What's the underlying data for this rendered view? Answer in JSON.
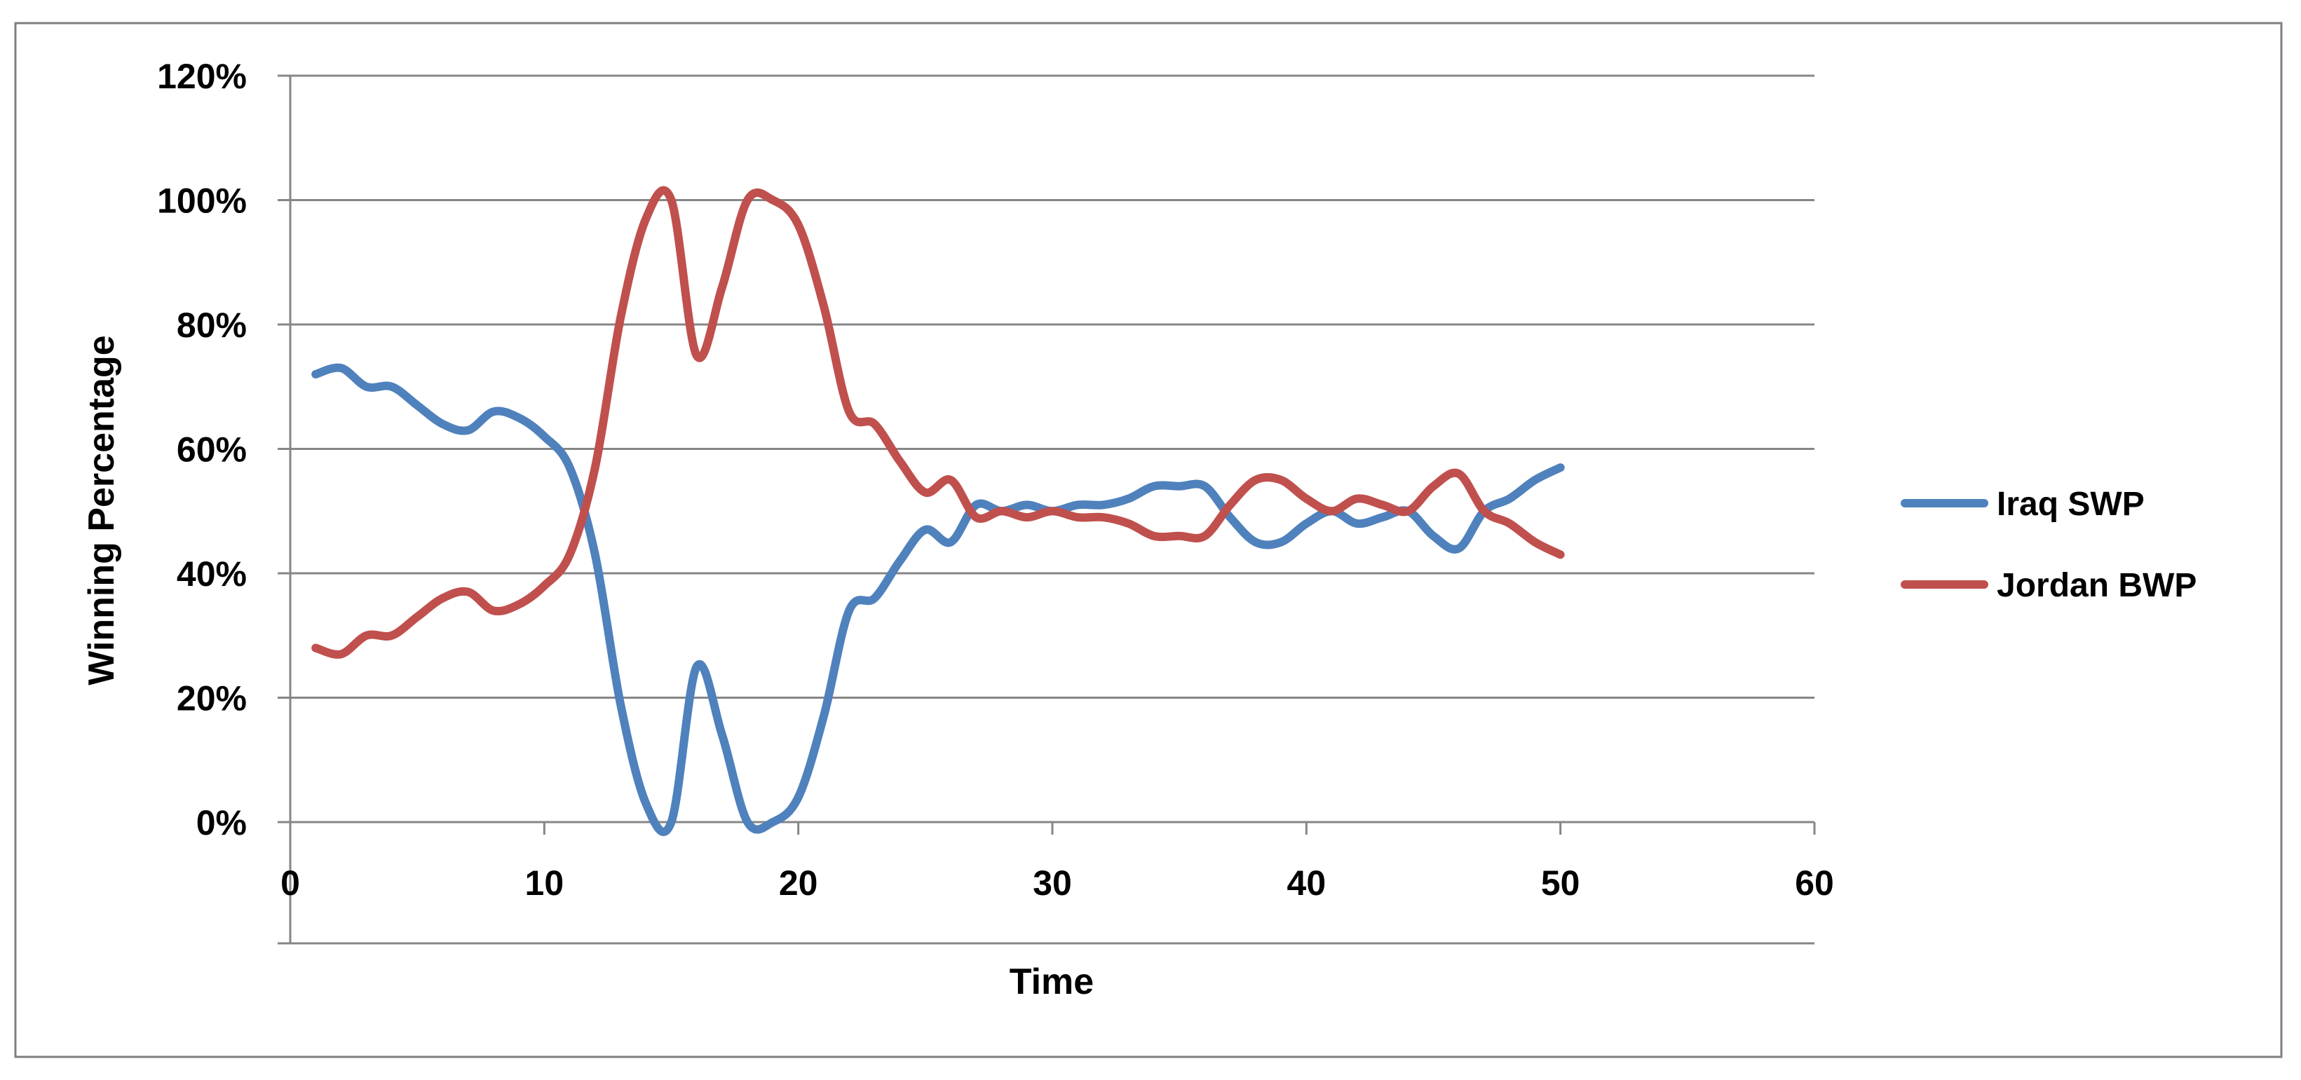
{
  "chart_data": {
    "type": "line",
    "title": "",
    "xlabel": "Time",
    "ylabel": "Winning Percentage",
    "xlim": [
      0,
      60
    ],
    "ylim": [
      0,
      1.2
    ],
    "x_ticks": [
      0,
      10,
      20,
      30,
      40,
      50,
      60
    ],
    "y_ticks": [
      0,
      0.2,
      0.4,
      0.6,
      0.8,
      1.0,
      1.2
    ],
    "x_tick_labels": [
      "0",
      "10",
      "20",
      "30",
      "40",
      "50",
      "60"
    ],
    "y_tick_labels": [
      "0%",
      "20%",
      "40%",
      "60%",
      "80%",
      "100%",
      "120%"
    ],
    "grid": "horizontal",
    "legend_position": "right",
    "x": [
      1,
      2,
      3,
      4,
      5,
      6,
      7,
      8,
      9,
      10,
      11,
      12,
      13,
      14,
      15,
      16,
      17,
      18,
      19,
      20,
      21,
      22,
      23,
      24,
      25,
      26,
      27,
      28,
      29,
      30,
      31,
      32,
      33,
      34,
      35,
      36,
      37,
      38,
      39,
      40,
      41,
      42,
      43,
      44,
      45,
      46,
      47,
      48,
      49,
      50
    ],
    "series": [
      {
        "name": "Iraq SWP",
        "color": "#4F81BD",
        "values": [
          0.72,
          0.73,
          0.7,
          0.7,
          0.67,
          0.64,
          0.63,
          0.66,
          0.65,
          0.62,
          0.57,
          0.43,
          0.19,
          0.03,
          0.0,
          0.25,
          0.14,
          0.0,
          0.0,
          0.04,
          0.17,
          0.34,
          0.36,
          0.42,
          0.47,
          0.45,
          0.51,
          0.5,
          0.51,
          0.5,
          0.51,
          0.51,
          0.52,
          0.54,
          0.54,
          0.54,
          0.49,
          0.45,
          0.45,
          0.48,
          0.5,
          0.48,
          0.49,
          0.5,
          0.46,
          0.44,
          0.5,
          0.52,
          0.55,
          0.57
        ]
      },
      {
        "name": "Jordan BWP",
        "color": "#C0504D",
        "values": [
          0.28,
          0.27,
          0.3,
          0.3,
          0.33,
          0.36,
          0.37,
          0.34,
          0.35,
          0.38,
          0.43,
          0.57,
          0.81,
          0.97,
          1.0,
          0.75,
          0.86,
          1.0,
          1.0,
          0.96,
          0.83,
          0.66,
          0.64,
          0.58,
          0.53,
          0.55,
          0.49,
          0.5,
          0.49,
          0.5,
          0.49,
          0.49,
          0.48,
          0.46,
          0.46,
          0.46,
          0.51,
          0.55,
          0.55,
          0.52,
          0.5,
          0.52,
          0.51,
          0.5,
          0.54,
          0.56,
          0.5,
          0.48,
          0.45,
          0.43
        ]
      }
    ]
  }
}
